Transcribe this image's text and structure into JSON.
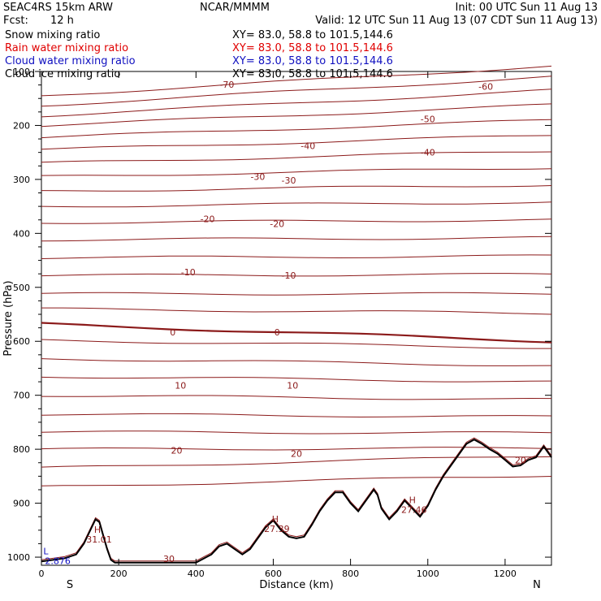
{
  "header": {
    "model": "SEAC4RS 15km ARW",
    "org": "NCAR/MMMM",
    "init": "Init: 00 UTC Sun 11 Aug 13",
    "fcst_label": "Fcst:",
    "fcst_value": "12 h",
    "valid": "Valid: 12 UTC Sun 11 Aug 13 (07 CDT Sun 11 Aug 13)",
    "fields": [
      {
        "name": "Snow mixing ratio",
        "color": "#000000",
        "xy": "XY=  83.0, 58.8 to 101.5,144.6"
      },
      {
        "name": "Rain water mixing ratio",
        "color": "#e00000",
        "xy": "XY=  83.0, 58.8 to 101.5,144.6"
      },
      {
        "name": "Cloud water mixing ratio",
        "color": "#1010c0",
        "xy": "XY=  83.0, 58.8 to 101.5,144.6"
      },
      {
        "name": "Cloud ice mixing ratio",
        "color": "#000000",
        "xy": "XY=  83.0, 58.8 to 101.5,144.6"
      }
    ]
  },
  "chart_data": {
    "type": "line",
    "xlabel": "Distance (km)",
    "ylabel": "Pressure (hPa)",
    "xlim": [
      0,
      1320
    ],
    "ylim": [
      1015,
      100
    ],
    "x_ticks": [
      0,
      200,
      400,
      600,
      800,
      1000,
      1200
    ],
    "y_ticks": [
      1000,
      900,
      800,
      700,
      600,
      500,
      400,
      300,
      200,
      100
    ],
    "end_labels": {
      "left": "S",
      "right": "N"
    },
    "colors": {
      "isotherm": "#8b1a1a",
      "terrain": "#000000",
      "cloud_label": "#1010c0"
    },
    "isotherms": [
      {
        "pressure_left": 145,
        "pressure_right": 90
      },
      {
        "pressure_left": 163,
        "pressure_right": 110
      },
      {
        "pressure_left": 182,
        "pressure_right": 135
      },
      {
        "pressure_left": 200,
        "pressure_right": 162
      },
      {
        "pressure_left": 222,
        "pressure_right": 190
      },
      {
        "pressure_left": 245,
        "pressure_right": 218
      },
      {
        "pressure_left": 270,
        "pressure_right": 247
      },
      {
        "pressure_left": 295,
        "pressure_right": 278
      },
      {
        "pressure_left": 322,
        "pressure_right": 310
      },
      {
        "pressure_left": 350,
        "pressure_right": 342
      },
      {
        "pressure_left": 380,
        "pressure_right": 375
      },
      {
        "pressure_left": 412,
        "pressure_right": 408
      },
      {
        "pressure_left": 445,
        "pressure_right": 442
      },
      {
        "pressure_left": 478,
        "pressure_right": 476
      },
      {
        "pressure_left": 512,
        "pressure_right": 512
      },
      {
        "pressure_left": 540,
        "pressure_right": 548
      },
      {
        "pressure_left": 568,
        "pressure_right": 600,
        "bold": true
      },
      {
        "pressure_left": 598,
        "pressure_right": 612
      },
      {
        "pressure_left": 632,
        "pressure_right": 645
      },
      {
        "pressure_left": 665,
        "pressure_right": 675
      },
      {
        "pressure_left": 700,
        "pressure_right": 708
      },
      {
        "pressure_left": 735,
        "pressure_right": 740
      },
      {
        "pressure_left": 768,
        "pressure_right": 770
      },
      {
        "pressure_left": 800,
        "pressure_right": 798
      },
      {
        "pressure_left": 835,
        "pressure_right": 812
      },
      {
        "pressure_left": 870,
        "pressure_right": 848
      }
    ],
    "contour_labels": [
      {
        "text": "-70",
        "x": 480,
        "p": 124
      },
      {
        "text": "-60",
        "x": 1150,
        "p": 128
      },
      {
        "text": "-50",
        "x": 1000,
        "p": 188
      },
      {
        "text": "-40",
        "x": 690,
        "p": 238
      },
      {
        "text": "-40",
        "x": 1000,
        "p": 250
      },
      {
        "text": "-30",
        "x": 560,
        "p": 295
      },
      {
        "text": "-30",
        "x": 640,
        "p": 302
      },
      {
        "text": "-20",
        "x": 430,
        "p": 373
      },
      {
        "text": "-20",
        "x": 610,
        "p": 382
      },
      {
        "text": "-10",
        "x": 380,
        "p": 472
      },
      {
        "text": "-10",
        "x": 640,
        "p": 478
      },
      {
        "text": "0",
        "x": 340,
        "p": 583
      },
      {
        "text": "0",
        "x": 610,
        "p": 583
      },
      {
        "text": "10",
        "x": 360,
        "p": 682
      },
      {
        "text": "10",
        "x": 650,
        "p": 682
      },
      {
        "text": "20",
        "x": 350,
        "p": 802
      },
      {
        "text": "20",
        "x": 660,
        "p": 808
      },
      {
        "text": "20",
        "x": 1240,
        "p": 820
      },
      {
        "text": "30",
        "x": 330,
        "p": 1003
      }
    ],
    "terrain": {
      "x": [
        0,
        30,
        60,
        90,
        110,
        130,
        140,
        150,
        160,
        170,
        180,
        190,
        200,
        300,
        400,
        440,
        460,
        480,
        500,
        520,
        540,
        560,
        580,
        600,
        620,
        640,
        660,
        680,
        700,
        720,
        740,
        760,
        780,
        800,
        820,
        840,
        860,
        870,
        880,
        900,
        920,
        940,
        960,
        980,
        1000,
        1020,
        1040,
        1060,
        1080,
        1100,
        1120,
        1140,
        1160,
        1180,
        1200,
        1220,
        1240,
        1260,
        1280,
        1300,
        1320
      ],
      "p": [
        1008,
        1005,
        1002,
        995,
        975,
        945,
        930,
        935,
        960,
        985,
        1005,
        1010,
        1010,
        1010,
        1010,
        995,
        980,
        975,
        985,
        995,
        985,
        965,
        945,
        932,
        950,
        962,
        965,
        962,
        940,
        915,
        895,
        880,
        880,
        900,
        915,
        895,
        875,
        885,
        910,
        930,
        915,
        895,
        910,
        925,
        905,
        875,
        850,
        830,
        810,
        790,
        782,
        790,
        800,
        808,
        820,
        832,
        830,
        820,
        815,
        795,
        815
      ]
    },
    "extrema": [
      {
        "text": "H",
        "value": "31.01",
        "x": 145,
        "p": 955
      },
      {
        "text": "H",
        "value": "27.39",
        "x": 605,
        "p": 935
      },
      {
        "text": "H",
        "value": "27.46",
        "x": 960,
        "p": 900
      },
      {
        "text": "L",
        "value": "2.876",
        "x": 5,
        "p": 995,
        "color": "#1010c0"
      }
    ]
  }
}
